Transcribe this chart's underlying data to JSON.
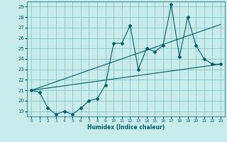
{
  "xlabel": "Humidex (Indice chaleur)",
  "bg_color": "#c8ecec",
  "line_color": "#006060",
  "grid_color": "#80c0c0",
  "xlim": [
    -0.5,
    23.5
  ],
  "ylim": [
    18.5,
    29.5
  ],
  "yticks": [
    19,
    20,
    21,
    22,
    23,
    24,
    25,
    26,
    27,
    28,
    29
  ],
  "xticks": [
    0,
    1,
    2,
    3,
    4,
    5,
    6,
    7,
    8,
    9,
    10,
    11,
    12,
    13,
    14,
    15,
    16,
    17,
    18,
    19,
    20,
    21,
    22,
    23
  ],
  "series_main": {
    "x": [
      0,
      1,
      2,
      3,
      4,
      5,
      6,
      7,
      8,
      9,
      10,
      11,
      12,
      13,
      14,
      15,
      16,
      17,
      18,
      19,
      20,
      21,
      22,
      23
    ],
    "y": [
      21.0,
      20.8,
      19.3,
      18.7,
      19.0,
      18.7,
      19.3,
      20.0,
      20.2,
      21.5,
      25.5,
      25.5,
      27.2,
      23.0,
      25.0,
      24.7,
      25.3,
      29.2,
      24.2,
      28.0,
      25.3,
      24.0,
      23.5,
      23.5
    ]
  },
  "series_upper": {
    "x": [
      0,
      23
    ],
    "y": [
      21.0,
      27.3
    ]
  },
  "series_lower": {
    "x": [
      0,
      23
    ],
    "y": [
      21.0,
      23.5
    ]
  }
}
